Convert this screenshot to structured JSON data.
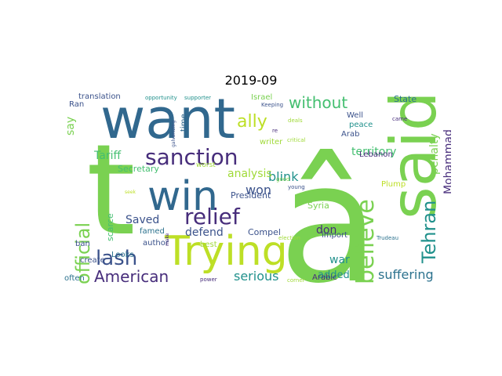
{
  "figure": {
    "title": "2019-09"
  },
  "words": [
    {
      "text": "â",
      "color": "#7ad151"
    },
    {
      "text": "said",
      "color": "#7ad151"
    },
    {
      "text": "want",
      "color": "#31688e"
    },
    {
      "text": "t",
      "color": "#7ad151"
    },
    {
      "text": "Trying",
      "color": "#bddf26"
    },
    {
      "text": "win",
      "color": "#31688e"
    },
    {
      "text": "sanction",
      "color": "#472d7b"
    },
    {
      "text": "relief",
      "color": "#472d7b"
    },
    {
      "text": "official",
      "color": "#7ad151"
    },
    {
      "text": "believe",
      "color": "#7ad151"
    },
    {
      "text": "Tehran",
      "color": "#21918c"
    },
    {
      "text": "lash",
      "color": "#3b528b"
    },
    {
      "text": "American",
      "color": "#472d7b"
    },
    {
      "text": "without",
      "color": "#44bf70"
    },
    {
      "text": "ally",
      "color": "#bddf26"
    },
    {
      "text": "blink",
      "color": "#21918c"
    },
    {
      "text": "analysis",
      "color": "#a0da39"
    },
    {
      "text": "won",
      "color": "#3b528b"
    },
    {
      "text": "Mohammad",
      "color": "#472d7b"
    },
    {
      "text": "penalty",
      "color": "#7ad151"
    },
    {
      "text": "serious",
      "color": "#21918c"
    },
    {
      "text": "suffering",
      "color": "#2c728e"
    },
    {
      "text": "territory",
      "color": "#44bf70"
    },
    {
      "text": "Tariff",
      "color": "#44bf70"
    },
    {
      "text": "Saved",
      "color": "#3b528b"
    },
    {
      "text": "defend",
      "color": "#3b528b"
    },
    {
      "text": "war",
      "color": "#21918c"
    },
    {
      "text": "don",
      "color": "#472d7b"
    },
    {
      "text": "added",
      "color": "#21918c"
    },
    {
      "text": "say",
      "color": "#7ad151"
    },
    {
      "text": "Secretary",
      "color": "#44bf70"
    },
    {
      "text": "President",
      "color": "#3b528b"
    },
    {
      "text": "Compel",
      "color": "#3b528b"
    },
    {
      "text": "famed",
      "color": "#2c728e"
    },
    {
      "text": "author",
      "color": "#3b528b"
    },
    {
      "text": "Looks",
      "color": "#2c728e"
    },
    {
      "text": "create",
      "color": "#3b528b"
    },
    {
      "text": "scarce",
      "color": "#44bf70"
    },
    {
      "text": "often",
      "color": "#2c728e"
    },
    {
      "text": "ban",
      "color": "#3b528b"
    },
    {
      "text": "Ran",
      "color": "#3b528b"
    },
    {
      "text": "translation",
      "color": "#3b528b"
    },
    {
      "text": "opportunity",
      "color": "#21918c"
    },
    {
      "text": "supporter",
      "color": "#21918c"
    },
    {
      "text": "galvanizing",
      "color": "#3b528b"
    },
    {
      "text": "time",
      "color": "#31688e"
    },
    {
      "text": "Israel",
      "color": "#7ad151"
    },
    {
      "text": "Keeping",
      "color": "#3b528b"
    },
    {
      "text": "re",
      "color": "#472d7b"
    },
    {
      "text": "deals",
      "color": "#a0da39"
    },
    {
      "text": "writer",
      "color": "#a0da39"
    },
    {
      "text": "critical",
      "color": "#a0da39"
    },
    {
      "text": "Well",
      "color": "#3b528b"
    },
    {
      "text": "peace",
      "color": "#21918c"
    },
    {
      "text": "State",
      "color": "#2c728e"
    },
    {
      "text": "came",
      "color": "#472d7b"
    },
    {
      "text": "Arab",
      "color": "#3b528b"
    },
    {
      "text": "Lebanon",
      "color": "#472d7b"
    },
    {
      "text": "Plump",
      "color": "#bddf26"
    },
    {
      "text": "worst",
      "color": "#a0da39"
    },
    {
      "text": "good",
      "color": "#7ad151"
    },
    {
      "text": "young",
      "color": "#3b528b"
    },
    {
      "text": "Syria",
      "color": "#7ad151"
    },
    {
      "text": "import",
      "color": "#3b528b"
    },
    {
      "text": "Trudeau",
      "color": "#2c728e"
    },
    {
      "text": "election",
      "color": "#a0da39"
    },
    {
      "text": "best",
      "color": "#a0da39"
    },
    {
      "text": "make",
      "color": "#472d7b"
    },
    {
      "text": "power",
      "color": "#472d7b"
    },
    {
      "text": "corner",
      "color": "#a0da39"
    },
    {
      "text": "Arabic",
      "color": "#472d7b"
    },
    {
      "text": "seek",
      "color": "#bddf26"
    }
  ]
}
